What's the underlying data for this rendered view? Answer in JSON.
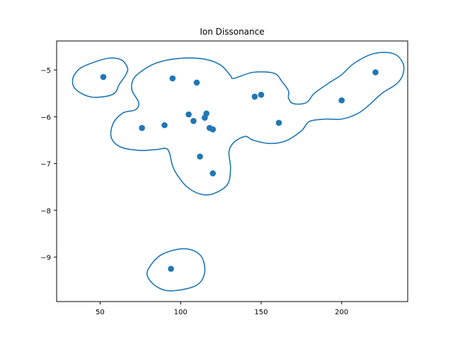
{
  "chart_data": {
    "type": "scatter",
    "title": "Ion Dissonance",
    "xlabel": "",
    "ylabel": "",
    "xlim": [
      23,
      241
    ],
    "ylim": [
      -9.95,
      -4.38
    ],
    "xticks": [
      50,
      100,
      150,
      200
    ],
    "yticks": [
      -5,
      -6,
      -7,
      -8,
      -9
    ],
    "xtick_labels": [
      "50",
      "100",
      "150",
      "200"
    ],
    "ytick_labels": [
      "−5",
      "−6",
      "−7",
      "−8",
      "−9"
    ],
    "grid": false,
    "colors": {
      "points": "#1f77b4",
      "contour": "#1f77b4",
      "axes": "#000000"
    },
    "points": [
      {
        "x": 52,
        "y": -5.15
      },
      {
        "x": 95,
        "y": -5.18
      },
      {
        "x": 110,
        "y": -5.27
      },
      {
        "x": 146,
        "y": -5.57
      },
      {
        "x": 150,
        "y": -5.53
      },
      {
        "x": 105,
        "y": -5.95
      },
      {
        "x": 116,
        "y": -5.93
      },
      {
        "x": 115,
        "y": -6.02
      },
      {
        "x": 108,
        "y": -6.09
      },
      {
        "x": 76,
        "y": -6.24
      },
      {
        "x": 90,
        "y": -6.18
      },
      {
        "x": 118,
        "y": -6.24
      },
      {
        "x": 120,
        "y": -6.27
      },
      {
        "x": 161,
        "y": -6.13
      },
      {
        "x": 200,
        "y": -5.65
      },
      {
        "x": 221,
        "y": -5.05
      },
      {
        "x": 112,
        "y": -6.85
      },
      {
        "x": 120,
        "y": -7.21
      },
      {
        "x": 94,
        "y": -9.25
      }
    ],
    "contours": [
      [
        [
          62,
          -5.3
        ],
        [
          58,
          -5.52
        ],
        [
          45,
          -5.58
        ],
        [
          35,
          -5.42
        ],
        [
          33,
          -5.2
        ],
        [
          37,
          -4.98
        ],
        [
          45,
          -4.85
        ],
        [
          55,
          -4.75
        ],
        [
          63,
          -4.78
        ],
        [
          67,
          -4.95
        ],
        [
          66,
          -5.1
        ]
      ],
      [
        [
          74,
          -5.07
        ],
        [
          85,
          -4.85
        ],
        [
          100,
          -4.75
        ],
        [
          115,
          -4.77
        ],
        [
          125,
          -4.9
        ],
        [
          131,
          -5.12
        ],
        [
          133,
          -5.18
        ],
        [
          145,
          -5.05
        ],
        [
          158,
          -5.07
        ],
        [
          163,
          -5.25
        ],
        [
          167,
          -5.45
        ],
        [
          167,
          -5.6
        ],
        [
          170,
          -5.72
        ],
        [
          178,
          -5.7
        ],
        [
          183,
          -5.5
        ],
        [
          192,
          -5.28
        ],
        [
          200,
          -5.1
        ],
        [
          208,
          -4.85
        ],
        [
          220,
          -4.65
        ],
        [
          232,
          -4.65
        ],
        [
          238,
          -4.85
        ],
        [
          238,
          -5.1
        ],
        [
          234,
          -5.3
        ],
        [
          225,
          -5.5
        ],
        [
          217,
          -5.75
        ],
        [
          210,
          -5.93
        ],
        [
          200,
          -6.05
        ],
        [
          190,
          -6.05
        ],
        [
          180,
          -6.1
        ],
        [
          175,
          -6.3
        ],
        [
          165,
          -6.52
        ],
        [
          155,
          -6.57
        ],
        [
          145,
          -6.5
        ],
        [
          140,
          -6.42
        ],
        [
          133,
          -6.55
        ],
        [
          130,
          -6.75
        ],
        [
          131,
          -7.1
        ],
        [
          129,
          -7.45
        ],
        [
          120,
          -7.65
        ],
        [
          112,
          -7.65
        ],
        [
          104,
          -7.5
        ],
        [
          98,
          -7.25
        ],
        [
          95,
          -7.05
        ],
        [
          92,
          -6.7
        ],
        [
          85,
          -6.7
        ],
        [
          75,
          -6.72
        ],
        [
          63,
          -6.65
        ],
        [
          57,
          -6.45
        ],
        [
          58,
          -6.15
        ],
        [
          64,
          -5.92
        ],
        [
          72,
          -5.85
        ],
        [
          74,
          -5.7
        ],
        [
          70,
          -5.45
        ],
        [
          70,
          -5.25
        ]
      ],
      [
        [
          95,
          -9.72
        ],
        [
          110,
          -9.6
        ],
        [
          115,
          -9.3
        ],
        [
          112,
          -8.95
        ],
        [
          102,
          -8.82
        ],
        [
          88,
          -8.95
        ],
        [
          80,
          -9.25
        ],
        [
          80,
          -9.45
        ],
        [
          86,
          -9.65
        ]
      ]
    ]
  }
}
